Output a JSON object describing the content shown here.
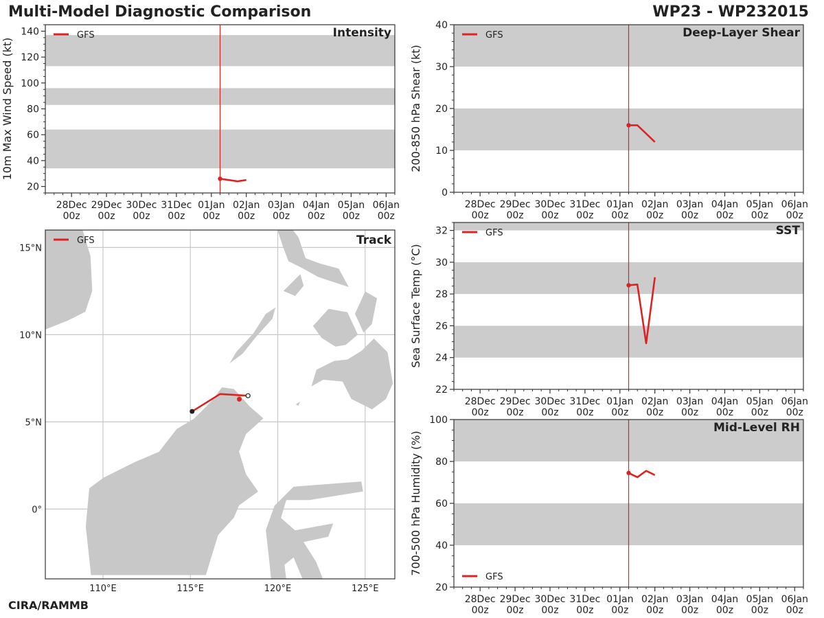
{
  "header": {
    "title": "Multi-Model Diagnostic Comparison",
    "storm_id": "WP23 - WP232015"
  },
  "footer": {
    "credit": "CIRA/RAMMB"
  },
  "colors": {
    "gfs": "#dd2222",
    "band": "#cccccc",
    "land": "#c8c8c8",
    "init_line": "#dd2222",
    "axis": "#333333",
    "grid": "#c8c8c8"
  },
  "chart_data": [
    {
      "id": "intensity",
      "type": "line",
      "title": "Intensity",
      "ylabel": "10m Max Wind Speed (kt)",
      "ylim": [
        15,
        145
      ],
      "yticks": [
        20,
        40,
        60,
        80,
        100,
        120,
        140
      ],
      "yminor_step": 5,
      "bands": [
        [
          34,
          64
        ],
        [
          83,
          96
        ],
        [
          113,
          137
        ]
      ],
      "xlim": [
        -3.75,
        6.25
      ],
      "xticks": [
        {
          "v": -3,
          "day": "28Dec",
          "hr": "00z"
        },
        {
          "v": -2,
          "day": "29Dec",
          "hr": "00z"
        },
        {
          "v": -1,
          "day": "30Dec",
          "hr": "00z"
        },
        {
          "v": 0,
          "day": "31Dec",
          "hr": "00z"
        },
        {
          "v": 1,
          "day": "01Jan",
          "hr": "00z"
        },
        {
          "v": 2,
          "day": "02Jan",
          "hr": "00z"
        },
        {
          "v": 3,
          "day": "03Jan",
          "hr": "00z"
        },
        {
          "v": 4,
          "day": "04Jan",
          "hr": "00z"
        },
        {
          "v": 5,
          "day": "05Jan",
          "hr": "00z"
        },
        {
          "v": 6,
          "day": "06Jan",
          "hr": "00z"
        }
      ],
      "init_time": 1.25,
      "legend": "GFS",
      "legend_pos": "top-left",
      "series": [
        {
          "name": "GFS",
          "x": [
            1.25,
            1.5,
            1.75,
            2.0
          ],
          "y": [
            26,
            25,
            24,
            25
          ]
        }
      ]
    },
    {
      "id": "shear",
      "type": "line",
      "title": "Deep-Layer Shear",
      "ylabel": "200-850 hPa Shear (kt)",
      "ylim": [
        0,
        40
      ],
      "yticks": [
        0,
        10,
        20,
        30,
        40
      ],
      "yminor_step": 2,
      "bands": [
        [
          10,
          20
        ],
        [
          30,
          40
        ]
      ],
      "xlim": [
        -3.75,
        6.25
      ],
      "xticks": [
        {
          "v": -3,
          "day": "28Dec",
          "hr": "00z"
        },
        {
          "v": -2,
          "day": "29Dec",
          "hr": "00z"
        },
        {
          "v": -1,
          "day": "30Dec",
          "hr": "00z"
        },
        {
          "v": 0,
          "day": "31Dec",
          "hr": "00z"
        },
        {
          "v": 1,
          "day": "01Jan",
          "hr": "00z"
        },
        {
          "v": 2,
          "day": "02Jan",
          "hr": "00z"
        },
        {
          "v": 3,
          "day": "03Jan",
          "hr": "00z"
        },
        {
          "v": 4,
          "day": "04Jan",
          "hr": "00z"
        },
        {
          "v": 5,
          "day": "05Jan",
          "hr": "00z"
        },
        {
          "v": 6,
          "day": "06Jan",
          "hr": "00z"
        }
      ],
      "init_time": 1.25,
      "legend": "GFS",
      "legend_pos": "top-left",
      "series": [
        {
          "name": "GFS",
          "x": [
            1.25,
            1.5,
            1.75,
            2.0
          ],
          "y": [
            16,
            16,
            14,
            12
          ]
        }
      ]
    },
    {
      "id": "sst",
      "type": "line",
      "title": "SST",
      "ylabel": "Sea Surface Temp (°C)",
      "ylim": [
        22,
        32.5
      ],
      "yticks": [
        22,
        24,
        26,
        28,
        30,
        32
      ],
      "yminor_step": 0.5,
      "bands": [
        [
          24,
          26
        ],
        [
          28,
          30
        ],
        [
          32,
          32.5
        ]
      ],
      "xlim": [
        -3.75,
        6.25
      ],
      "xticks": [
        {
          "v": -3,
          "day": "28Dec",
          "hr": "00z"
        },
        {
          "v": -2,
          "day": "29Dec",
          "hr": "00z"
        },
        {
          "v": -1,
          "day": "30Dec",
          "hr": "00z"
        },
        {
          "v": 0,
          "day": "31Dec",
          "hr": "00z"
        },
        {
          "v": 1,
          "day": "01Jan",
          "hr": "00z"
        },
        {
          "v": 2,
          "day": "02Jan",
          "hr": "00z"
        },
        {
          "v": 3,
          "day": "03Jan",
          "hr": "00z"
        },
        {
          "v": 4,
          "day": "04Jan",
          "hr": "00z"
        },
        {
          "v": 5,
          "day": "05Jan",
          "hr": "00z"
        },
        {
          "v": 6,
          "day": "06Jan",
          "hr": "00z"
        }
      ],
      "init_time": 1.25,
      "legend": "GFS",
      "legend_pos": "top-left",
      "series": [
        {
          "name": "GFS",
          "x": [
            1.25,
            1.5,
            1.75,
            2.0
          ],
          "y": [
            28.55,
            28.6,
            24.9,
            29.05
          ]
        }
      ]
    },
    {
      "id": "rh",
      "type": "line",
      "title": "Mid-Level RH",
      "ylabel": "700-500 hPa Humidity (%)",
      "ylim": [
        20,
        100
      ],
      "yticks": [
        20,
        40,
        60,
        80,
        100
      ],
      "yminor_step": 5,
      "bands": [
        [
          40,
          60
        ],
        [
          80,
          100
        ]
      ],
      "xlim": [
        -3.75,
        6.25
      ],
      "xticks": [
        {
          "v": -3,
          "day": "28Dec",
          "hr": "00z"
        },
        {
          "v": -2,
          "day": "29Dec",
          "hr": "00z"
        },
        {
          "v": -1,
          "day": "30Dec",
          "hr": "00z"
        },
        {
          "v": 0,
          "day": "31Dec",
          "hr": "00z"
        },
        {
          "v": 1,
          "day": "01Jan",
          "hr": "00z"
        },
        {
          "v": 2,
          "day": "02Jan",
          "hr": "00z"
        },
        {
          "v": 3,
          "day": "03Jan",
          "hr": "00z"
        },
        {
          "v": 4,
          "day": "04Jan",
          "hr": "00z"
        },
        {
          "v": 5,
          "day": "05Jan",
          "hr": "00z"
        },
        {
          "v": 6,
          "day": "06Jan",
          "hr": "00z"
        }
      ],
      "init_time": 1.25,
      "legend": "GFS",
      "legend_pos": "bottom-left",
      "series": [
        {
          "name": "GFS",
          "x": [
            1.25,
            1.5,
            1.75,
            2.0
          ],
          "y": [
            74.5,
            72.5,
            75.5,
            73.5
          ]
        }
      ]
    },
    {
      "id": "track",
      "type": "scatter",
      "title": "Track",
      "legend": "GFS",
      "legend_pos": "top-left",
      "lon_range": [
        106.7,
        126.7
      ],
      "lat_range": [
        -4,
        16
      ],
      "lon_ticks": [
        {
          "v": 110,
          "label": "110°E"
        },
        {
          "v": 115,
          "label": "115°E"
        },
        {
          "v": 120,
          "label": "120°E"
        },
        {
          "v": 125,
          "label": "125°E"
        }
      ],
      "lat_ticks": [
        {
          "v": 0,
          "label": "0°"
        },
        {
          "v": 5,
          "label": "5°N"
        },
        {
          "v": 10,
          "label": "10°N"
        },
        {
          "v": 15,
          "label": "15°N"
        }
      ],
      "series": [
        {
          "name": "GFS",
          "lon": [
            115.1,
            116.7,
            118.3
          ],
          "lat": [
            5.6,
            6.6,
            6.5
          ]
        }
      ],
      "init_position": {
        "lon": 117.8,
        "lat": 6.3
      },
      "final_position": {
        "lon": 118.3,
        "lat": 6.5
      }
    }
  ]
}
